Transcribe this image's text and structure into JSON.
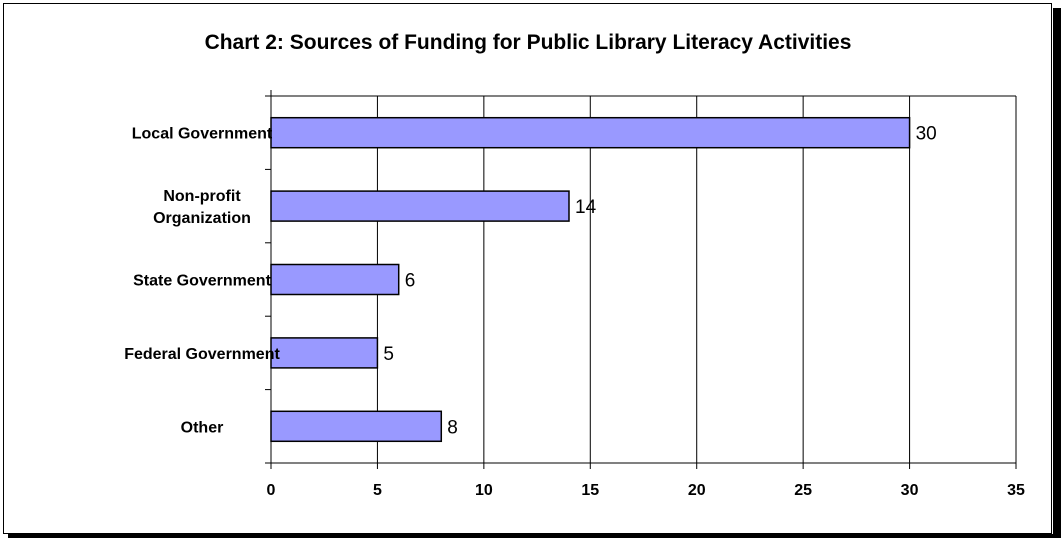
{
  "chart_data": {
    "type": "bar",
    "orientation": "horizontal",
    "title": "Chart 2: Sources of Funding for Public Library Literacy Activities",
    "categories": [
      [
        "Local Government"
      ],
      [
        "Non-profit",
        "Organization"
      ],
      [
        "State Government"
      ],
      [
        "Federal Government"
      ],
      [
        "Other"
      ]
    ],
    "values": [
      30,
      14,
      6,
      5,
      8
    ],
    "xlim": [
      0,
      35
    ],
    "xticks": [
      "0",
      "5",
      "10",
      "15",
      "20",
      "25",
      "30",
      "35"
    ],
    "grid": true,
    "legend": false,
    "data_labels": true,
    "colors": {
      "bar_fill": "#9999ff",
      "bar_stroke": "#000000",
      "gridline": "#000000"
    }
  }
}
